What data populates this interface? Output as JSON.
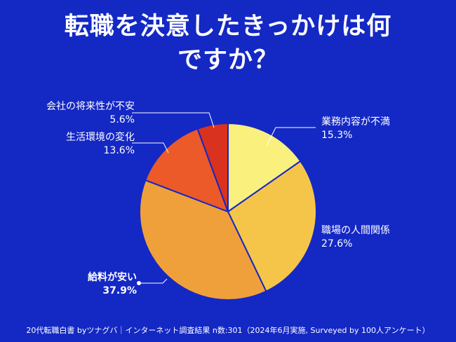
{
  "title": {
    "line1": "転職を決意したきっかけは何",
    "line2": "ですか？"
  },
  "chart_data": {
    "type": "pie",
    "title": "転職を決意したきっかけは何ですか？",
    "unit": "%",
    "slices": [
      {
        "label": "業務内容が不満",
        "value": 15.3,
        "value_label": "15.3%",
        "color": "#F9F07E"
      },
      {
        "label": "職場の人間関係",
        "value": 27.6,
        "value_label": "27.6%",
        "color": "#F5C54A"
      },
      {
        "label": "給料が安い",
        "value": 37.9,
        "value_label": "37.9%",
        "color": "#F0A03A"
      },
      {
        "label": "生活環境の変化",
        "value": 13.6,
        "value_label": "13.6%",
        "color": "#EC5A2A"
      },
      {
        "label": "会社の将来性が不安",
        "value": 5.6,
        "value_label": "5.6%",
        "color": "#D9321F"
      }
    ]
  },
  "footer": "20代転職白書 byツナグバ｜インターネット調査結果 n数:301（2024年6月実施, Surveyed by 100人アンケート）"
}
